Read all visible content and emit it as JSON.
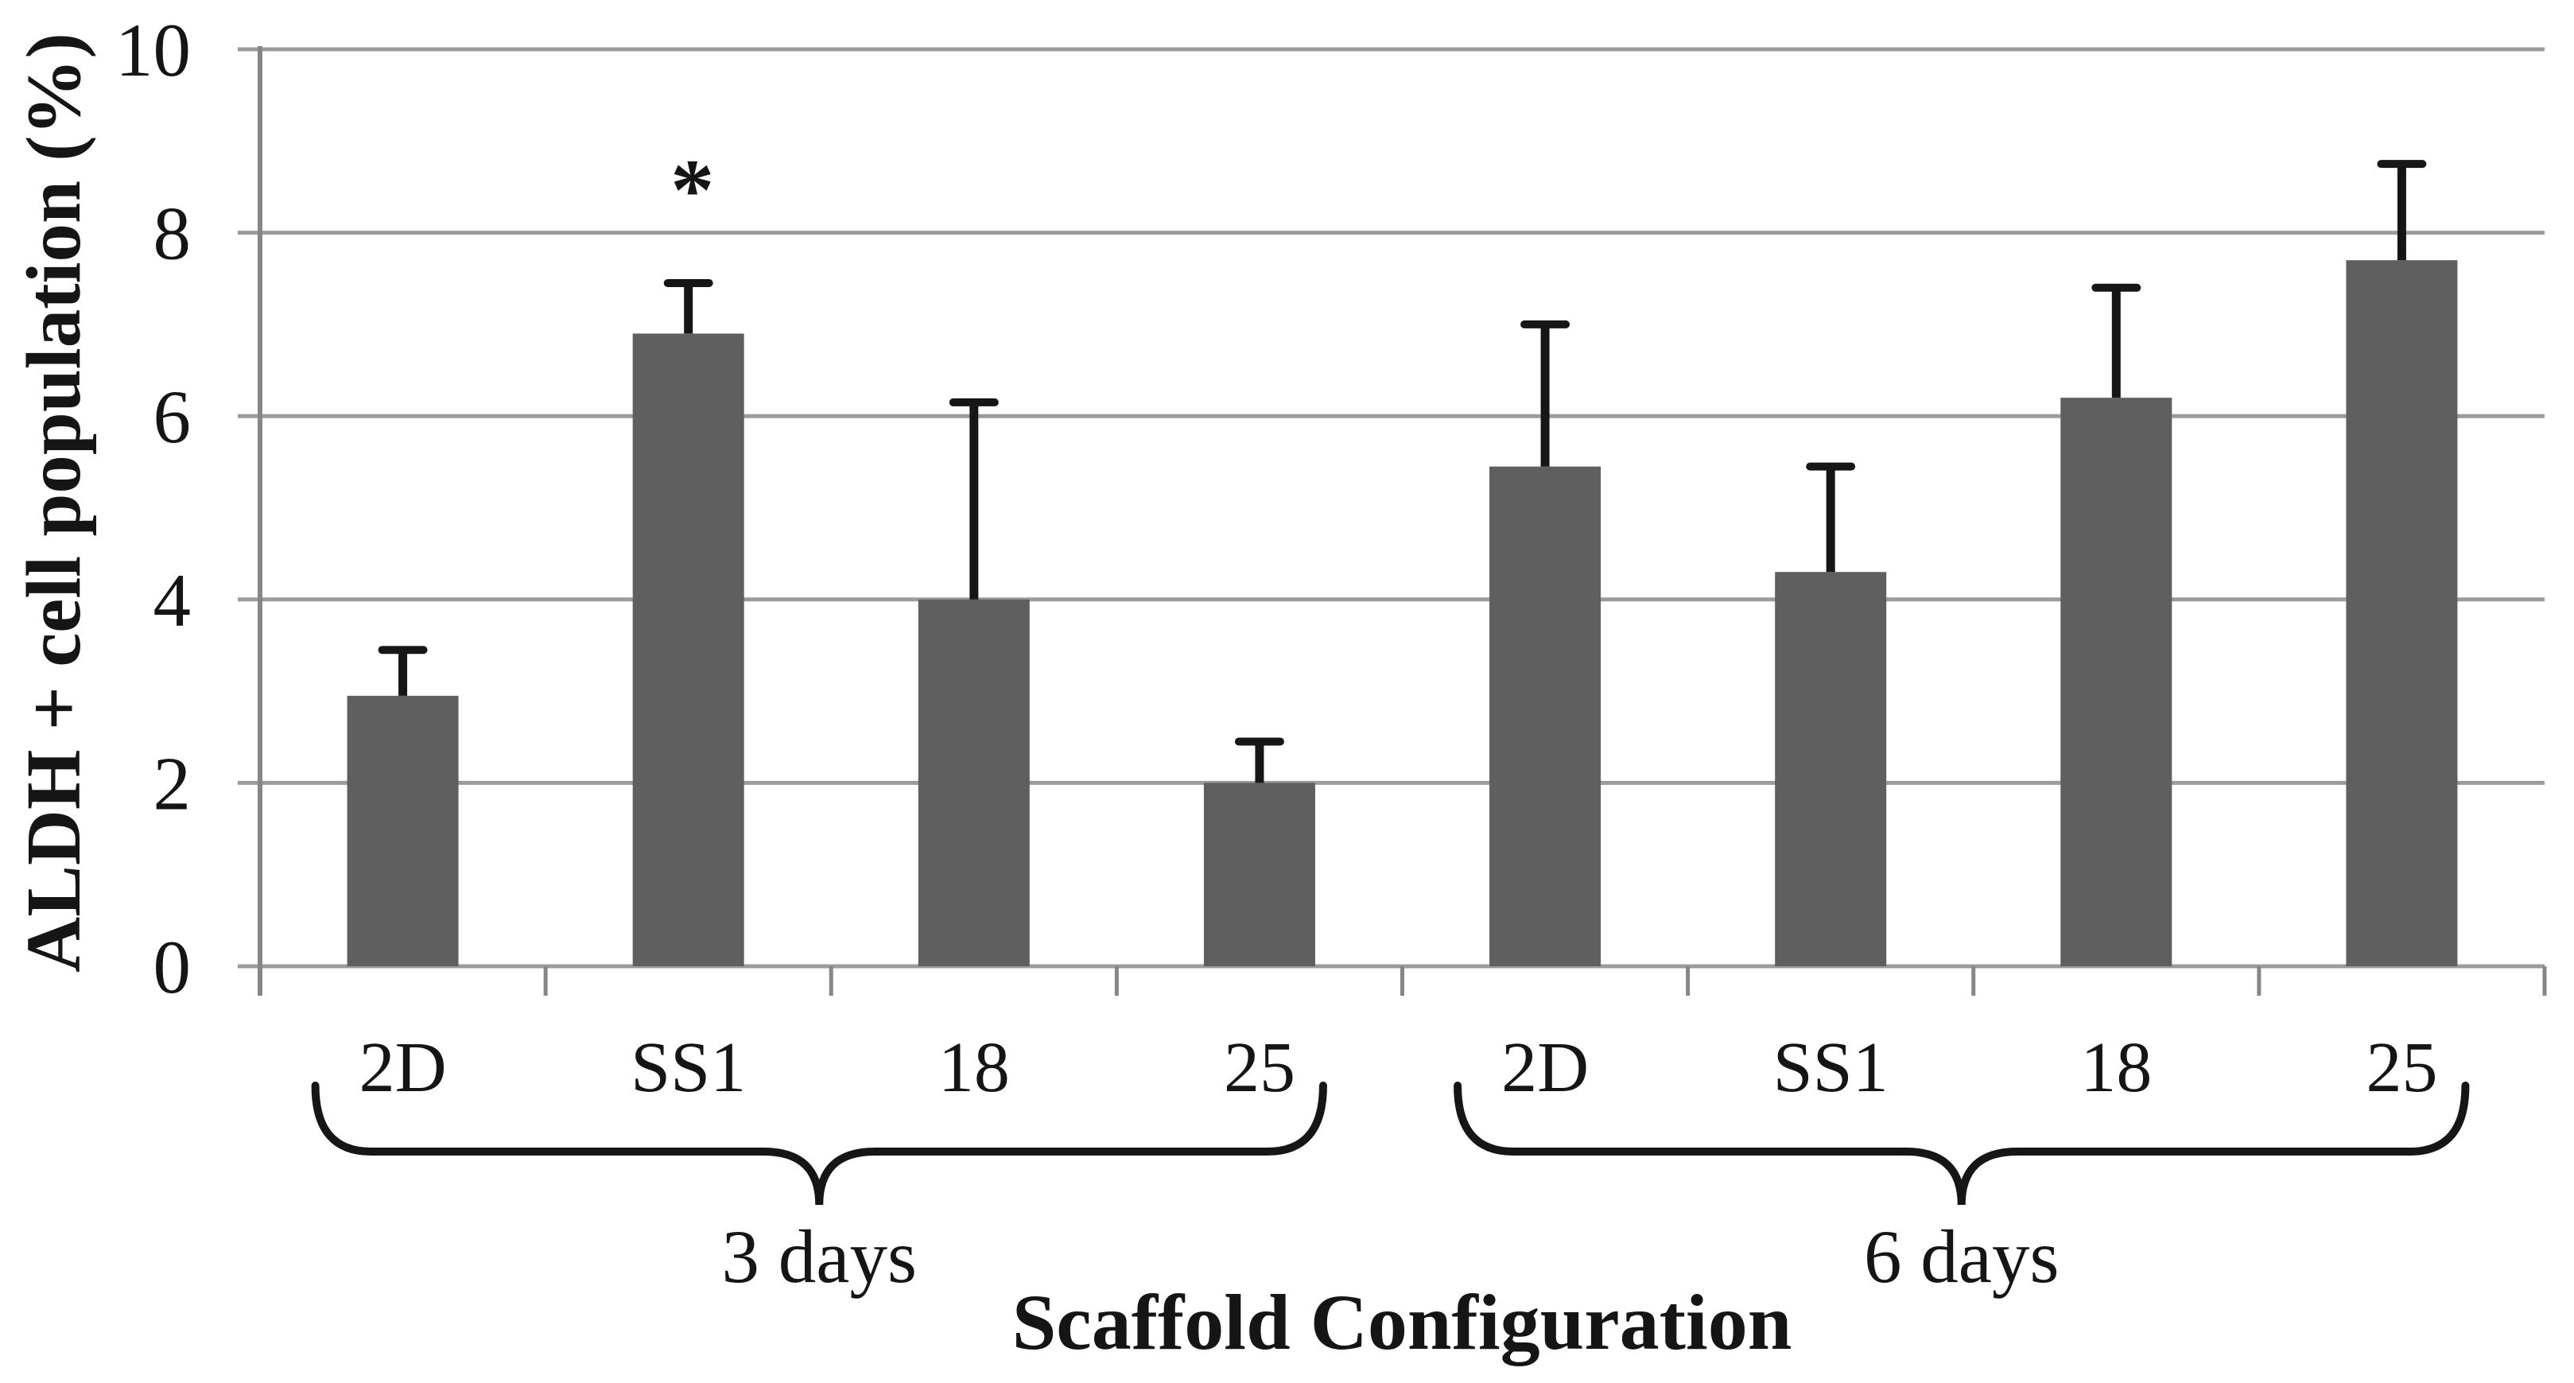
{
  "chart_data": {
    "type": "bar",
    "title": "",
    "xlabel": "Scaffold Configuration",
    "ylabel": "ALDH + cell population (%)",
    "ylim": [
      0,
      10
    ],
    "yticks": [
      0,
      2,
      4,
      6,
      8,
      10
    ],
    "grid": "horizontal",
    "legend": "none",
    "groups": [
      {
        "label": "3 days",
        "categories": [
          "2D",
          "SS1",
          "18",
          "25"
        ],
        "values": [
          2.95,
          6.9,
          4.0,
          2.0
        ],
        "errors_plus": [
          0.5,
          0.55,
          2.15,
          0.45
        ]
      },
      {
        "label": "6 days",
        "categories": [
          "2D",
          "SS1",
          "18",
          "25"
        ],
        "values": [
          5.45,
          4.3,
          6.2,
          7.7
        ],
        "errors_plus": [
          1.55,
          1.15,
          1.2,
          1.05
        ]
      }
    ],
    "annotations": [
      {
        "text": "*",
        "group": "3 days",
        "category": "SS1",
        "y": 8.6
      }
    ],
    "colors": {
      "bar": "#5f5f5f",
      "gridline": "#9b9b9b",
      "axis": "#868686",
      "error_bar": "#161616",
      "text": "#151515"
    }
  }
}
